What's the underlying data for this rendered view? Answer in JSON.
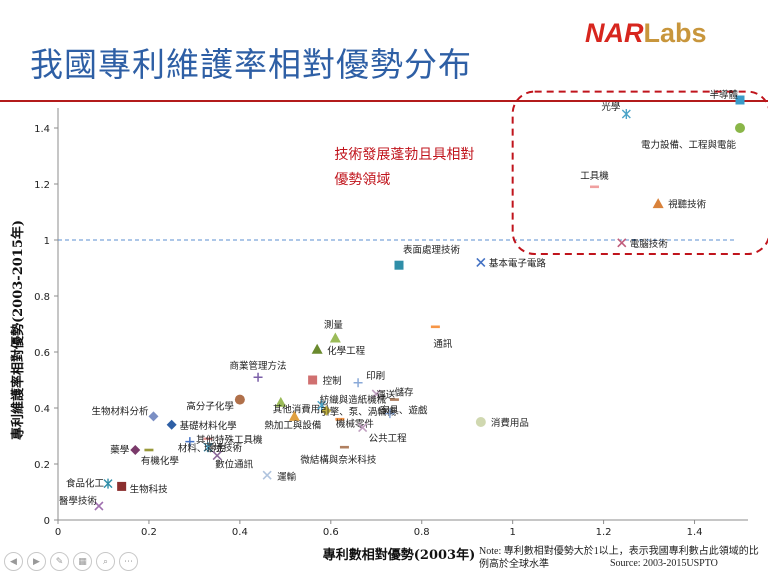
{
  "header": {
    "title": "我國專利維護率相對優勢分布",
    "logo_nar": "NAR",
    "logo_labs": "Labs"
  },
  "colors": {
    "title": "#2e5fa5",
    "accent_red": "#c0141c",
    "dashed_line": "#5b8fd1"
  },
  "chart_data": {
    "type": "scatter",
    "title": "我國專利維護率相對優勢分布",
    "xlabel": "專利數相對優勢(2003年)",
    "ylabel": "專利維護率相對優勢(2003-2015年)",
    "xlim": [
      0,
      1.5
    ],
    "ylim": [
      0,
      1.5
    ],
    "xticks": [
      "0",
      "0.2",
      "0.4",
      "0.6",
      "0.8",
      "1",
      "1.2",
      "1.4"
    ],
    "yticks": [
      "0",
      "0.2",
      "0.4",
      "0.6",
      "0.8",
      "1",
      "1.2",
      "1.4"
    ],
    "reference_line_y": 1,
    "highlight_label_1": "技術發展蓬勃且具相對",
    "highlight_label_2": "優勢領域",
    "points": [
      {
        "label": "半導體",
        "x": 1.5,
        "y": 1.5,
        "marker": "square",
        "color": "#3a9cc9"
      },
      {
        "label": "光學",
        "x": 1.25,
        "y": 1.45,
        "marker": "asterisk",
        "color": "#4ba3c7"
      },
      {
        "label": "電力設備、工程與電能",
        "x": 1.5,
        "y": 1.4,
        "marker": "circle",
        "color": "#8ab648"
      },
      {
        "label": "工具機",
        "x": 1.18,
        "y": 1.19,
        "marker": "dash",
        "color": "#f0a0a0"
      },
      {
        "label": "視聽技術",
        "x": 1.32,
        "y": 1.13,
        "marker": "triangle",
        "color": "#d9823b"
      },
      {
        "label": "電腦技術",
        "x": 1.24,
        "y": 0.99,
        "marker": "x",
        "color": "#c05c7b"
      },
      {
        "label": "表面處理技術",
        "x": 0.75,
        "y": 0.91,
        "marker": "square",
        "color": "#2f8ea8"
      },
      {
        "label": "基本電子電路",
        "x": 0.93,
        "y": 0.92,
        "marker": "x",
        "color": "#4472c4"
      },
      {
        "label": "測量",
        "x": 0.61,
        "y": 0.65,
        "marker": "triangle",
        "color": "#9bbb59"
      },
      {
        "label": "通訊",
        "x": 0.83,
        "y": 0.69,
        "marker": "dash",
        "color": "#f79646"
      },
      {
        "label": "化學工程",
        "x": 0.57,
        "y": 0.61,
        "marker": "triangle",
        "color": "#6a8a2e"
      },
      {
        "label": "商業管理方法",
        "x": 0.44,
        "y": 0.51,
        "marker": "plus",
        "color": "#7b5fa8"
      },
      {
        "label": "控制",
        "x": 0.56,
        "y": 0.5,
        "marker": "square",
        "color": "#d07070"
      },
      {
        "label": "印刷",
        "x": 0.66,
        "y": 0.49,
        "marker": "plus",
        "color": "#8aa9d8"
      },
      {
        "label": "運送",
        "x": 0.7,
        "y": 0.45,
        "marker": "x",
        "color": "#c0a0c0"
      },
      {
        "label": "儲存",
        "x": 0.74,
        "y": 0.43,
        "marker": "dash",
        "color": "#b08060"
      },
      {
        "label": "生物材料分析",
        "x": 0.21,
        "y": 0.37,
        "marker": "diamond",
        "color": "#7b8fc4"
      },
      {
        "label": "高分子化學",
        "x": 0.4,
        "y": 0.43,
        "marker": "circle",
        "color": "#b0704a"
      },
      {
        "label": "其他消費用品",
        "x": 0.49,
        "y": 0.42,
        "marker": "triangle",
        "color": "#9bbb59"
      },
      {
        "label": "紡織與造紙機械",
        "x": 0.58,
        "y": 0.41,
        "marker": "asterisk",
        "color": "#4ba3c7"
      },
      {
        "label": "引擎、泵、渦輪機",
        "x": 0.59,
        "y": 0.39,
        "marker": "diamond",
        "color": "#c0b040"
      },
      {
        "label": "機械零件",
        "x": 0.62,
        "y": 0.36,
        "marker": "dash",
        "color": "#f79646"
      },
      {
        "label": "基礎材料化學",
        "x": 0.25,
        "y": 0.34,
        "marker": "diamond",
        "color": "#2e5fa5"
      },
      {
        "label": "熱加工與設備",
        "x": 0.52,
        "y": 0.37,
        "marker": "triangle",
        "color": "#e0a040"
      },
      {
        "label": "公共工程",
        "x": 0.67,
        "y": 0.33,
        "marker": "x",
        "color": "#c0a0c0"
      },
      {
        "label": "家具、遊戲",
        "x": 0.73,
        "y": 0.38,
        "marker": "plus",
        "color": "#8aa9d8"
      },
      {
        "label": "消費用品",
        "x": 0.93,
        "y": 0.35,
        "marker": "circle",
        "color": "#d0d8b0"
      },
      {
        "label": "其他特殊工具機",
        "x": 0.33,
        "y": 0.29,
        "marker": "dash",
        "color": "#f0a0a0"
      },
      {
        "label": "藥學",
        "x": 0.17,
        "y": 0.25,
        "marker": "diamond",
        "color": "#7a3a6a"
      },
      {
        "label": "材料、冶金",
        "x": 0.29,
        "y": 0.28,
        "marker": "plus",
        "color": "#4472c4"
      },
      {
        "label": "環境技術",
        "x": 0.33,
        "y": 0.26,
        "marker": "asterisk",
        "color": "#4ba3c7"
      },
      {
        "label": "有機化學",
        "x": 0.2,
        "y": 0.25,
        "marker": "dash",
        "color": "#9a9a3a"
      },
      {
        "label": "數位通訊",
        "x": 0.35,
        "y": 0.23,
        "marker": "x",
        "color": "#8a6a9a"
      },
      {
        "label": "微結構與奈米科技",
        "x": 0.63,
        "y": 0.26,
        "marker": "dash",
        "color": "#b08060"
      },
      {
        "label": "運輸",
        "x": 0.46,
        "y": 0.16,
        "marker": "x",
        "color": "#b0c4de"
      },
      {
        "label": "食品化工",
        "x": 0.11,
        "y": 0.13,
        "marker": "asterisk",
        "color": "#2f8ea8"
      },
      {
        "label": "生物科技",
        "x": 0.14,
        "y": 0.12,
        "marker": "square",
        "color": "#8b2f2f"
      },
      {
        "label": "醫學技術",
        "x": 0.09,
        "y": 0.05,
        "marker": "x",
        "color": "#a070b0"
      }
    ],
    "note": "Note: 專利數相對優勢大於1以上，表示我國專利數占此領域的比例高於全球水準",
    "source": "Source: 2003-2015USPTO"
  }
}
